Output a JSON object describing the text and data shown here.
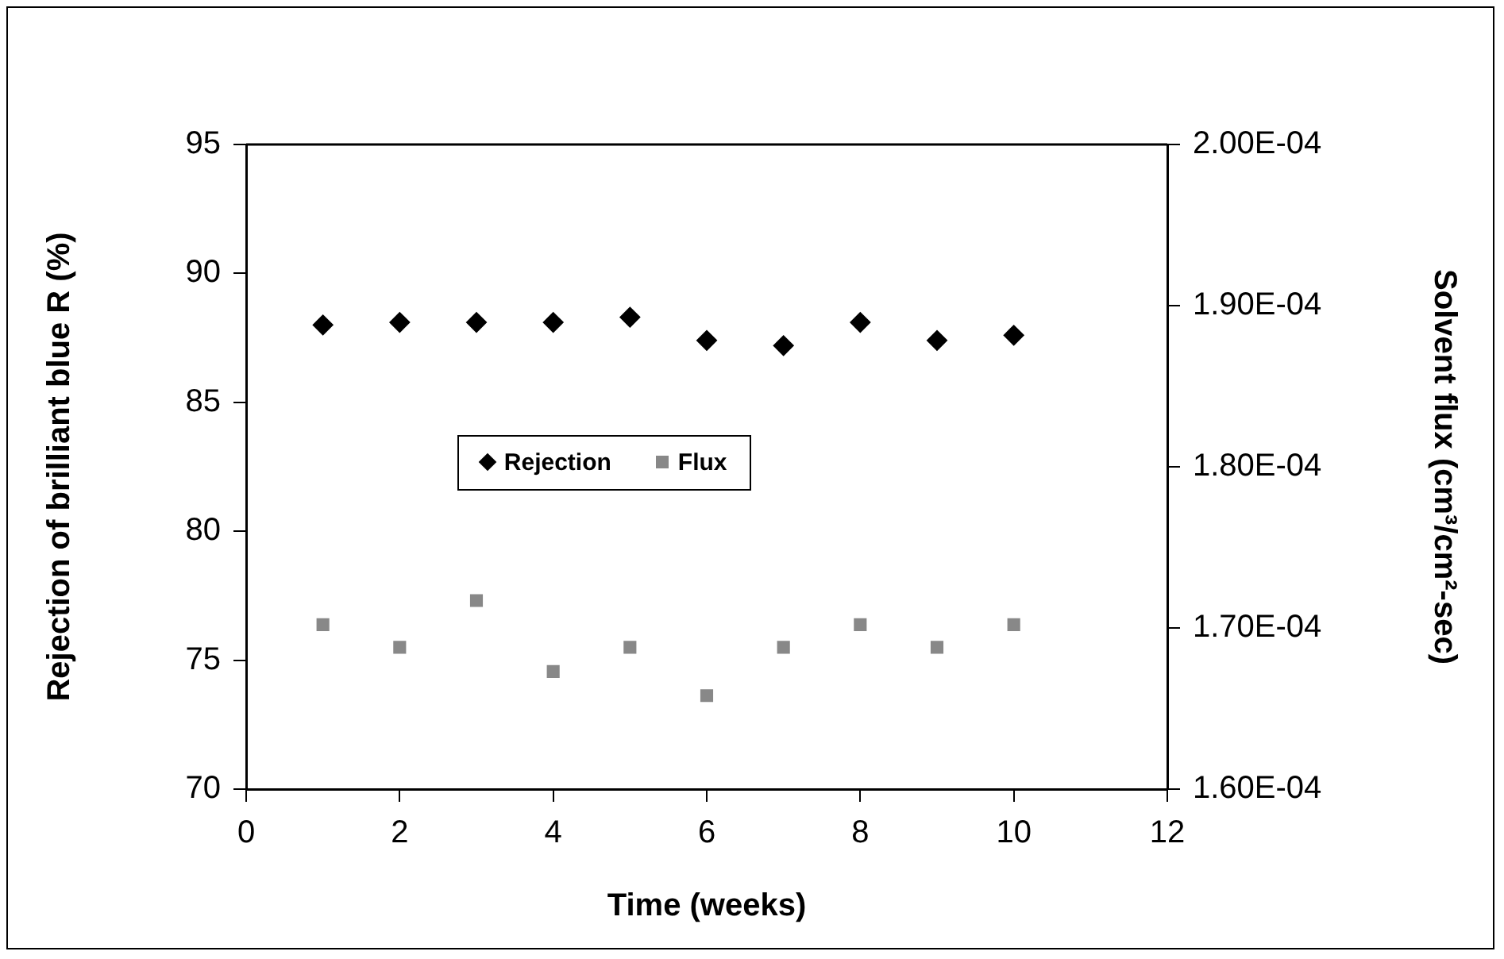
{
  "chart_data": {
    "type": "scatter",
    "xlabel": "Time (weeks)",
    "ylabel": "Rejection of brilliant blue R (%)",
    "y2label": "Solvent flux (cm³/cm²-sec)",
    "x": [
      1,
      2,
      3,
      4,
      5,
      6,
      7,
      8,
      9,
      10
    ],
    "series": [
      {
        "name": "Rejection",
        "color": "#000000",
        "marker": "diamond",
        "values": [
          88.0,
          88.1,
          88.1,
          88.1,
          88.3,
          87.4,
          87.2,
          88.1,
          87.4,
          87.6
        ]
      },
      {
        "name": "Flux",
        "color": "#888888",
        "marker": "square",
        "axis": "y2",
        "values": [
          0.0001702,
          0.0001688,
          0.0001717,
          0.0001673,
          0.0001688,
          0.0001658,
          0.0001688,
          0.0001702,
          0.0001688,
          0.0001702
        ]
      }
    ],
    "xlim": [
      0,
      12
    ],
    "xticks": [
      0,
      2,
      4,
      6,
      8,
      10,
      12
    ],
    "ylim": [
      70,
      95
    ],
    "yticks": [
      70,
      75,
      80,
      85,
      90,
      95
    ],
    "y2lim": [
      0.00016,
      0.0002
    ],
    "y2ticks": [
      {
        "value": 0.00016,
        "label": "1.60E-04"
      },
      {
        "value": 0.00017,
        "label": "1.70E-04"
      },
      {
        "value": 0.00018,
        "label": "1.80E-04"
      },
      {
        "value": 0.00019,
        "label": "1.90E-04"
      },
      {
        "value": 0.0002,
        "label": "2.00E-04"
      }
    ],
    "grid": false,
    "legend": "center left"
  }
}
